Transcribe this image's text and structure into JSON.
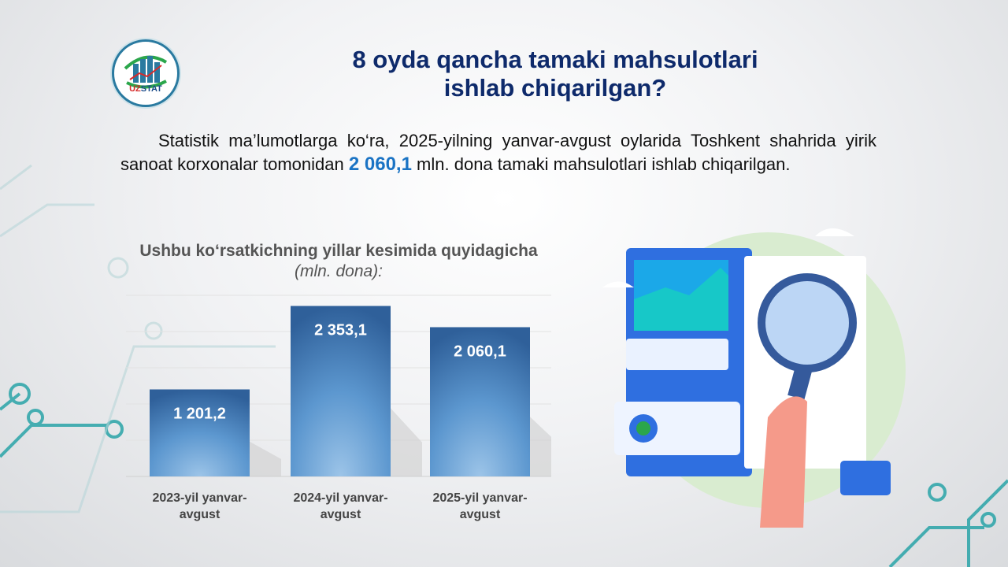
{
  "logo": {
    "text": "UZSTAT"
  },
  "title": {
    "line1": "8 oyda qancha tamaki mahsulotlari",
    "line2": "ishlab chiqarilgan?"
  },
  "paragraph": {
    "before": "Statistik ma’lumotlarga ko‘ra, 2025-yilning yanvar-avgust oylarida Toshkent shahrida yirik sanoat korxonalar tomonidan ",
    "highlight": "2 060,1",
    "after": " mln. dona tamaki mahsulotlari ishlab chiqarilgan."
  },
  "chart_data": {
    "type": "bar",
    "title": "Ushbu ko‘rsatkichning yillar kesimida quyidagicha",
    "unit": "(mln. dona):",
    "categories": [
      "2023-yil yanvar-avgust",
      "2024-yil yanvar-avgust",
      "2025-yil yanvar-avgust"
    ],
    "category_lines": [
      [
        "2023-yil yanvar-",
        "avgust"
      ],
      [
        "2024-yil yanvar-",
        "avgust"
      ],
      [
        "2025-yil yanvar-",
        "avgust"
      ]
    ],
    "values": [
      1201.2,
      2353.1,
      2060.1
    ],
    "data_labels": [
      "1 201,2",
      "2 353,1",
      "2 060,1"
    ],
    "ylim": [
      0,
      2500
    ],
    "grid": true,
    "grid_step": 500,
    "bar_color": "#3c78b4",
    "highlight_color": "#1a73c4"
  }
}
